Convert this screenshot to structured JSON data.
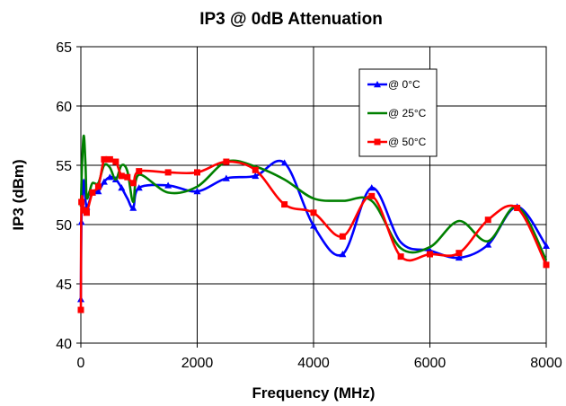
{
  "chart_data": {
    "type": "line",
    "title": "IP3 @ 0dB Attenuation",
    "xlabel": "Frequency (MHz)",
    "ylabel": "IP3 (dBm)",
    "xlim": [
      0,
      8000
    ],
    "ylim": [
      40,
      65
    ],
    "x_ticks": [
      0,
      2000,
      4000,
      6000,
      8000
    ],
    "y_ticks": [
      40,
      45,
      50,
      55,
      60,
      65
    ],
    "grid": true,
    "legend_position": "top-right",
    "series": [
      {
        "name": "@ 0°C",
        "color": "#0000ff",
        "marker": "triangle",
        "points": [
          [
            0,
            43.7
          ],
          [
            10,
            50.2
          ],
          [
            30,
            52.8
          ],
          [
            50,
            53.6
          ],
          [
            100,
            51.5
          ],
          [
            200,
            52.7
          ],
          [
            300,
            52.8
          ],
          [
            400,
            53.6
          ],
          [
            500,
            54.0
          ],
          [
            600,
            53.8
          ],
          [
            700,
            53.1
          ],
          [
            800,
            52.2
          ],
          [
            900,
            51.4
          ],
          [
            1000,
            53.1
          ],
          [
            1500,
            53.3
          ],
          [
            2000,
            52.8
          ],
          [
            2500,
            53.9
          ],
          [
            3000,
            54.1
          ],
          [
            3500,
            55.2
          ],
          [
            4000,
            49.9
          ],
          [
            4500,
            47.5
          ],
          [
            5000,
            53.1
          ],
          [
            5500,
            48.5
          ],
          [
            6000,
            47.8
          ],
          [
            6500,
            47.2
          ],
          [
            7000,
            48.3
          ],
          [
            7500,
            51.5
          ],
          [
            8000,
            48.2
          ]
        ],
        "markers": [
          [
            0,
            43.7
          ],
          [
            10,
            50.2
          ],
          [
            50,
            53.6
          ],
          [
            100,
            51.5
          ],
          [
            200,
            52.7
          ],
          [
            300,
            52.8
          ],
          [
            400,
            53.6
          ],
          [
            500,
            54.0
          ],
          [
            600,
            53.8
          ],
          [
            700,
            53.1
          ],
          [
            900,
            51.4
          ],
          [
            1000,
            53.1
          ],
          [
            1500,
            53.3
          ],
          [
            2000,
            52.8
          ],
          [
            2500,
            53.9
          ],
          [
            3000,
            54.1
          ],
          [
            3500,
            55.2
          ],
          [
            4000,
            49.9
          ],
          [
            4500,
            47.5
          ],
          [
            5000,
            53.1
          ],
          [
            6000,
            47.8
          ],
          [
            6500,
            47.2
          ],
          [
            7000,
            48.3
          ],
          [
            7500,
            51.5
          ],
          [
            8000,
            48.2
          ]
        ]
      },
      {
        "name": "@ 25°C",
        "color": "#008000",
        "marker": "none",
        "points": [
          [
            0,
            51.5
          ],
          [
            20,
            55.0
          ],
          [
            50,
            57.5
          ],
          [
            80,
            55.0
          ],
          [
            100,
            52.3
          ],
          [
            150,
            52.8
          ],
          [
            200,
            53.5
          ],
          [
            300,
            53.5
          ],
          [
            400,
            55.0
          ],
          [
            500,
            54.8
          ],
          [
            600,
            53.8
          ],
          [
            700,
            55.0
          ],
          [
            800,
            54.5
          ],
          [
            900,
            51.9
          ],
          [
            1000,
            54.2
          ],
          [
            1500,
            52.7
          ],
          [
            2000,
            53.2
          ],
          [
            2500,
            55.3
          ],
          [
            3000,
            54.9
          ],
          [
            3500,
            53.8
          ],
          [
            4000,
            52.2
          ],
          [
            4500,
            52.0
          ],
          [
            5000,
            52.0
          ],
          [
            5500,
            48.0
          ],
          [
            6000,
            48.1
          ],
          [
            6500,
            50.3
          ],
          [
            7000,
            48.6
          ],
          [
            7500,
            51.5
          ],
          [
            8000,
            47.0
          ]
        ],
        "markers": []
      },
      {
        "name": "@ 50°C",
        "color": "#ff0000",
        "marker": "square",
        "points": [
          [
            0,
            42.8
          ],
          [
            10,
            51.9
          ],
          [
            50,
            51.2
          ],
          [
            100,
            51.0
          ],
          [
            200,
            52.7
          ],
          [
            300,
            53.2
          ],
          [
            400,
            55.5
          ],
          [
            500,
            55.5
          ],
          [
            600,
            55.3
          ],
          [
            700,
            54.1
          ],
          [
            800,
            54.0
          ],
          [
            900,
            53.5
          ],
          [
            1000,
            54.5
          ],
          [
            1500,
            54.4
          ],
          [
            2000,
            54.4
          ],
          [
            2500,
            55.3
          ],
          [
            3000,
            54.6
          ],
          [
            3500,
            51.7
          ],
          [
            4000,
            51.0
          ],
          [
            4500,
            49.0
          ],
          [
            5000,
            52.4
          ],
          [
            5500,
            47.3
          ],
          [
            6000,
            47.5
          ],
          [
            6500,
            47.6
          ],
          [
            7000,
            50.4
          ],
          [
            7500,
            51.4
          ],
          [
            8000,
            46.6
          ]
        ],
        "markers": [
          [
            0,
            42.8
          ],
          [
            10,
            51.9
          ],
          [
            50,
            51.2
          ],
          [
            100,
            51.0
          ],
          [
            200,
            52.7
          ],
          [
            300,
            53.2
          ],
          [
            400,
            55.5
          ],
          [
            500,
            55.5
          ],
          [
            600,
            55.3
          ],
          [
            700,
            54.1
          ],
          [
            800,
            54.0
          ],
          [
            900,
            53.5
          ],
          [
            1000,
            54.5
          ],
          [
            1500,
            54.4
          ],
          [
            2000,
            54.4
          ],
          [
            2500,
            55.3
          ],
          [
            3000,
            54.6
          ],
          [
            3500,
            51.7
          ],
          [
            4000,
            51.0
          ],
          [
            4500,
            49.0
          ],
          [
            5000,
            52.4
          ],
          [
            5500,
            47.3
          ],
          [
            6000,
            47.5
          ],
          [
            6500,
            47.6
          ],
          [
            7000,
            50.4
          ],
          [
            7500,
            51.4
          ],
          [
            8000,
            46.6
          ]
        ]
      }
    ]
  }
}
